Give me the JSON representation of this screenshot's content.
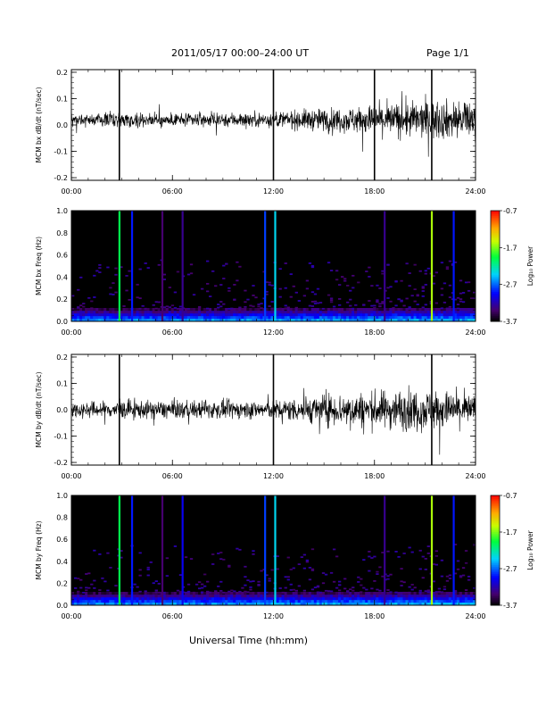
{
  "header": {
    "title": "2011/05/17  00:00–24:00 UT",
    "page": "Page 1/1"
  },
  "xaxis_label": "Universal Time (hh:mm)",
  "colorbar_label": "Log₁₀ Power",
  "colors": {
    "trace": "#000000",
    "background": "#ffffff"
  },
  "chart_data": [
    {
      "type": "line",
      "ylabel": "MCM bx dB/dt (nT/sec)",
      "xlim": [
        0,
        24
      ],
      "x_ticks": [
        "00:00",
        "06:00",
        "12:00",
        "18:00",
        "24:00"
      ],
      "ylim": [
        -0.21,
        0.21
      ],
      "y_ticks": [
        "-0.2",
        "-0.1",
        "0.0",
        "0.1",
        "0.2"
      ],
      "baseline": 0.02,
      "noise_envelope": [
        [
          0,
          0.02
        ],
        [
          3,
          0.025
        ],
        [
          6,
          0.02
        ],
        [
          9,
          0.025
        ],
        [
          12,
          0.025
        ],
        [
          14,
          0.035
        ],
        [
          16,
          0.04
        ],
        [
          18,
          0.05
        ],
        [
          20,
          0.06
        ],
        [
          22,
          0.065
        ],
        [
          24,
          0.06
        ]
      ],
      "spikes_hours": [
        2.85,
        12.0,
        18.0,
        21.4
      ],
      "spike_range": [
        -0.21,
        0.21
      ]
    },
    {
      "type": "heatmap",
      "ylabel": "MCM bx Freq (Hz)",
      "xlim": [
        0,
        24
      ],
      "x_ticks": [
        "00:00",
        "06:00",
        "12:00",
        "18:00",
        "24:00"
      ],
      "ylim": [
        0,
        1.0
      ],
      "y_ticks": [
        "0.0",
        "0.2",
        "0.4",
        "0.6",
        "0.8",
        "1.0"
      ],
      "colorbar": {
        "range": [
          -3.7,
          -0.7
        ],
        "ticks": [
          "-0.7",
          "-1.7",
          "-2.7",
          "-3.7"
        ]
      },
      "background_log_power": -3.7,
      "vertical_lines": [
        {
          "hour": 2.85,
          "log_power": -2.0
        },
        {
          "hour": 3.6,
          "log_power": -2.9
        },
        {
          "hour": 5.4,
          "log_power": -3.4
        },
        {
          "hour": 6.6,
          "log_power": -3.3
        },
        {
          "hour": 11.5,
          "log_power": -2.8
        },
        {
          "hour": 12.1,
          "log_power": -2.4
        },
        {
          "hour": 18.6,
          "log_power": -3.3
        },
        {
          "hour": 21.4,
          "log_power": -1.6
        },
        {
          "hour": 22.7,
          "log_power": -2.9
        }
      ]
    },
    {
      "type": "line",
      "ylabel": "MCM by dB/dt (nT/sec)",
      "xlim": [
        0,
        24
      ],
      "x_ticks": [
        "00:00",
        "06:00",
        "12:00",
        "18:00",
        "24:00"
      ],
      "ylim": [
        -0.21,
        0.21
      ],
      "y_ticks": [
        "-0.2",
        "-0.1",
        "0.0",
        "0.1",
        "0.2"
      ],
      "baseline": 0.0,
      "noise_envelope": [
        [
          0,
          0.025
        ],
        [
          3,
          0.03
        ],
        [
          6,
          0.03
        ],
        [
          9,
          0.03
        ],
        [
          12,
          0.03
        ],
        [
          14,
          0.045
        ],
        [
          16,
          0.055
        ],
        [
          18,
          0.06
        ],
        [
          20,
          0.07
        ],
        [
          22,
          0.065
        ],
        [
          24,
          0.05
        ]
      ],
      "spikes_hours": [
        2.85,
        12.0,
        21.4
      ],
      "spike_range": [
        -0.21,
        0.21
      ]
    },
    {
      "type": "heatmap",
      "ylabel": "MCM by Freq (Hz)",
      "xlim": [
        0,
        24
      ],
      "x_ticks": [
        "00:00",
        "06:00",
        "12:00",
        "18:00",
        "24:00"
      ],
      "ylim": [
        0,
        1.0
      ],
      "y_ticks": [
        "0.0",
        "0.2",
        "0.4",
        "0.6",
        "0.8",
        "1.0"
      ],
      "colorbar": {
        "range": [
          -3.7,
          -0.7
        ],
        "ticks": [
          "-0.7",
          "-1.7",
          "-2.7",
          "-3.7"
        ]
      },
      "background_log_power": -3.7,
      "vertical_lines": [
        {
          "hour": 2.85,
          "log_power": -2.0
        },
        {
          "hour": 3.6,
          "log_power": -2.9
        },
        {
          "hour": 5.4,
          "log_power": -3.4
        },
        {
          "hour": 6.6,
          "log_power": -3.0
        },
        {
          "hour": 11.5,
          "log_power": -2.8
        },
        {
          "hour": 12.1,
          "log_power": -2.4
        },
        {
          "hour": 18.6,
          "log_power": -3.3
        },
        {
          "hour": 21.4,
          "log_power": -1.6
        },
        {
          "hour": 22.7,
          "log_power": -2.9
        }
      ]
    }
  ]
}
